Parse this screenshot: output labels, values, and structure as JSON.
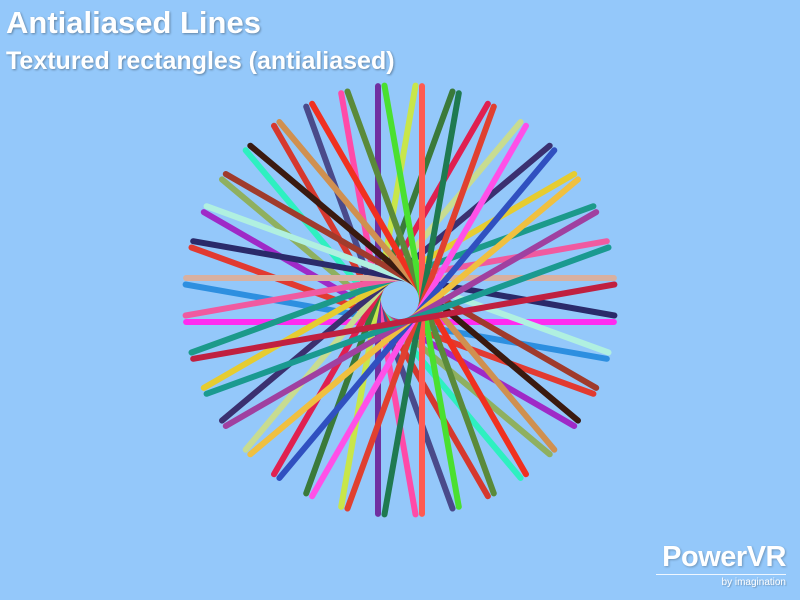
{
  "window": {
    "title": "Antialiased Lines",
    "subtitle": "Textured rectangles (antialiased)"
  },
  "background_color": "#94c8fa",
  "logo": {
    "main": "PowerVR",
    "sub": "by imagination"
  },
  "scene": {
    "line_colors": [
      "#ff2bf0",
      "#2d8fe0",
      "#e23a30",
      "#9f2ac7",
      "#8fb060",
      "#2ef0c0",
      "#d6382e",
      "#4a4a8a",
      "#ff4aa8",
      "#7030a0",
      "#c8e64a",
      "#3a7a3a",
      "#e02050",
      "#c8dc90",
      "#3b3070",
      "#e6cc30",
      "#1c9a8a",
      "#f05aa0",
      "#d8b0a0",
      "#2a2a6a",
      "#b0f0e0",
      "#a03b2c",
      "#3a1a10",
      "#d09050",
      "#f03020",
      "#5a8a3a",
      "#4ae030",
      "#ff5a50",
      "#1f7a50",
      "#e04030",
      "#ff50e8",
      "#3050c0",
      "#f0c040",
      "#a040a0",
      "#1a9a90",
      "#c02040"
    ]
  }
}
